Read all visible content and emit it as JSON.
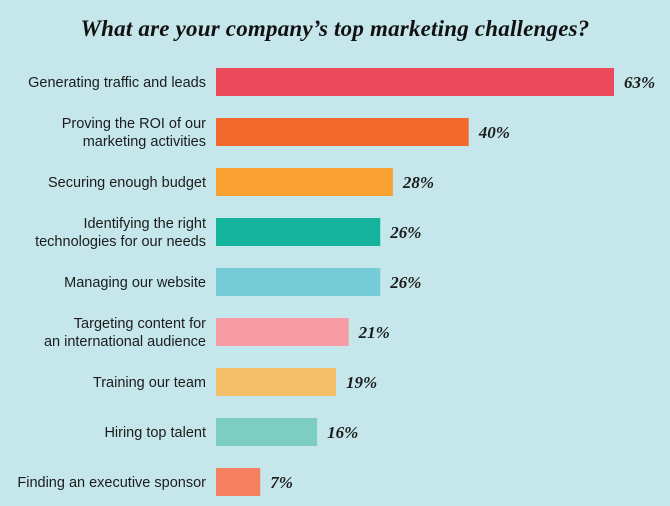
{
  "chart_data": {
    "type": "bar",
    "orientation": "horizontal",
    "title": "What are your company’s top marketing challenges?",
    "value_suffix": "%",
    "categories": [
      [
        "Generating traffic and leads"
      ],
      [
        "Proving the ROI of our",
        "marketing activities"
      ],
      [
        "Securing enough budget"
      ],
      [
        "Identifying the right",
        "technologies for our needs"
      ],
      [
        "Managing our website"
      ],
      [
        "Targeting content for",
        "an international audience"
      ],
      [
        "Training our team"
      ],
      [
        "Hiring top talent"
      ],
      [
        "Finding an executive sponsor"
      ]
    ],
    "values": [
      63,
      40,
      28,
      26,
      26,
      21,
      19,
      16,
      7
    ],
    "value_labels": [
      "63%",
      "40%",
      "28%",
      "26%",
      "26%",
      "21%",
      "19%",
      "16%",
      "7%"
    ],
    "colors": [
      "#ec4b5e",
      "#f26a2e",
      "#f8a132",
      "#15b39b",
      "#75cbd6",
      "#f89ba4",
      "#f5be6b",
      "#7dcdc3",
      "#f4805f"
    ],
    "xlim": [
      0,
      63
    ],
    "grid": false,
    "legend": "none"
  }
}
